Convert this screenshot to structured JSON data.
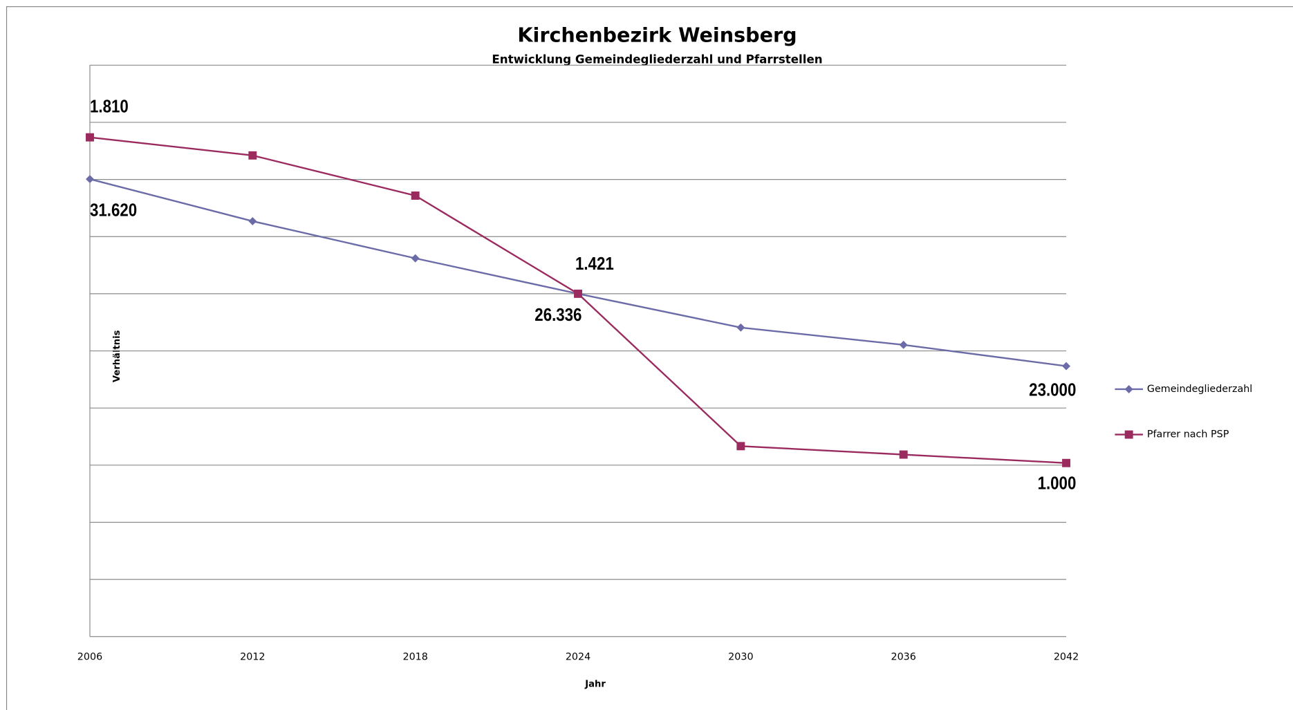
{
  "chart_data": {
    "type": "line",
    "title": "Kirchenbezirk Weinsberg",
    "subtitle": "Entwicklung Gemeindegliederzahl und Pfarrstellen",
    "x_label": "Jahr",
    "y_label": "Verhältnis",
    "categories": [
      "2006",
      "2012",
      "2018",
      "2024",
      "2030",
      "2036",
      "2042"
    ],
    "series": [
      {
        "name": "Gemeindegliederzahl",
        "color": "#6b6ba8",
        "label_color": "#3434c4",
        "marker": "diamond",
        "values": [
          31620,
          29680,
          27970,
          26336,
          24778,
          23980,
          23000
        ],
        "value_labels": [
          "31.620",
          null,
          null,
          "26.336",
          null,
          null,
          "23.000"
        ]
      },
      {
        "name": "Pfarrer nach PSP",
        "color": "#9b2b5f",
        "label_color": "#a2288f",
        "marker": "square",
        "axis": "y2",
        "values": [
          1810,
          1765,
          1665,
          1421,
          1042,
          1021,
          1000
        ],
        "value_labels": [
          "1.810",
          null,
          null,
          "1.421",
          null,
          null,
          "1.000"
        ]
      }
    ],
    "ylim": [
      10534.4,
      36870.4
    ],
    "yticks": [
      10534.4,
      13168,
      15801.6,
      18435.2,
      21068.8,
      23702.4,
      26336,
      28969.6,
      31603.2,
      34236.8,
      36870.4
    ],
    "y2lim": [
      568.4,
      1989.4
    ],
    "grid": true,
    "legend": "right"
  }
}
